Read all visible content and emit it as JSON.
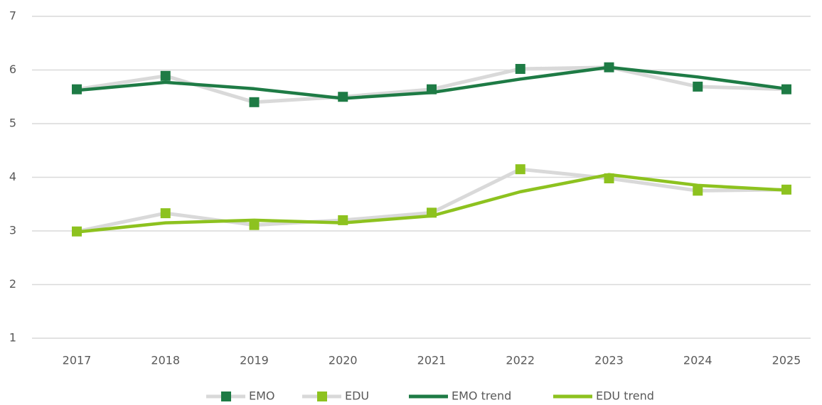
{
  "chart_data": {
    "type": "line",
    "categories": [
      "2017",
      "2018",
      "2019",
      "2020",
      "2021",
      "2022",
      "2023",
      "2024",
      "2025"
    ],
    "series": [
      {
        "name": "EMO",
        "color": "#1e7b45",
        "line_color": "#d9d9d9",
        "marker": "square",
        "values": [
          5.64,
          5.89,
          5.4,
          5.5,
          5.64,
          6.02,
          6.05,
          5.69,
          5.64
        ]
      },
      {
        "name": "EDU",
        "color": "#8dc21f",
        "line_color": "#d9d9d9",
        "marker": "square",
        "values": [
          2.99,
          3.33,
          3.11,
          3.2,
          3.34,
          4.15,
          3.98,
          3.75,
          3.77
        ]
      },
      {
        "name": "EMO trend",
        "color": "#1e7b45",
        "line_color": "#1e7b45",
        "values": [
          5.62,
          5.77,
          5.65,
          5.47,
          5.58,
          5.83,
          6.05,
          5.87,
          5.65
        ]
      },
      {
        "name": "EDU trend",
        "color": "#8dc21f",
        "line_color": "#8dc21f",
        "values": [
          2.98,
          3.15,
          3.2,
          3.15,
          3.28,
          3.73,
          4.05,
          3.85,
          3.76
        ]
      }
    ],
    "ylim": [
      1,
      7
    ],
    "yticks": [
      1,
      2,
      3,
      4,
      5,
      6,
      7
    ],
    "grid": true,
    "legend": "bottom"
  }
}
